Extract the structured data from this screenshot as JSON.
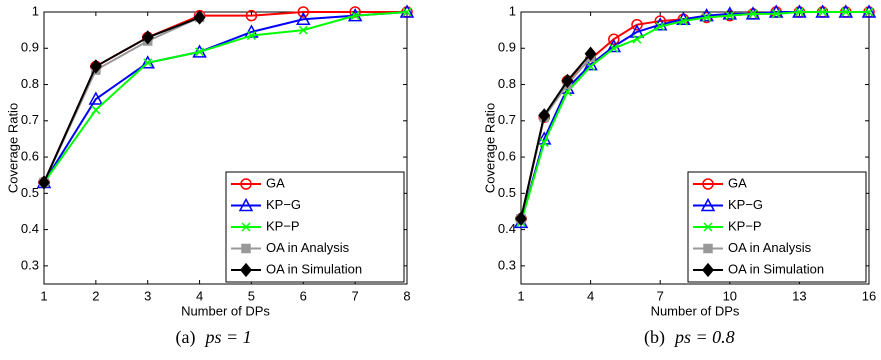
{
  "chart_data": [
    {
      "type": "line",
      "caption_label": "(a)",
      "caption": "ps = 1",
      "xlabel": "Number of DPs",
      "ylabel": "Coverage Ratio",
      "x": [
        1,
        2,
        3,
        4,
        5,
        6,
        7,
        8
      ],
      "xlim": [
        1,
        8
      ],
      "xticks": [
        1,
        2,
        3,
        4,
        5,
        6,
        7,
        8
      ],
      "ylim": [
        0.25,
        1
      ],
      "yticks": [
        0.3,
        0.4,
        0.5,
        0.6,
        0.7,
        0.8,
        0.9,
        1
      ],
      "legend": "lower-right",
      "series": [
        {
          "name": "GA",
          "color": "#ff0000",
          "marker": "circle",
          "values": [
            0.53,
            0.85,
            0.93,
            0.99,
            0.99,
            1,
            1,
            1
          ]
        },
        {
          "name": "KP−G",
          "color": "#0000ff",
          "marker": "triangle",
          "values": [
            0.53,
            0.76,
            0.86,
            0.89,
            0.945,
            0.98,
            0.99,
            1
          ]
        },
        {
          "name": "KP−P",
          "color": "#00ff00",
          "marker": "x",
          "values": [
            0.53,
            0.73,
            0.86,
            0.89,
            0.935,
            0.95,
            0.99,
            1
          ]
        },
        {
          "name": "OA in Analysis",
          "color": "#999999",
          "marker": "square",
          "values": [
            0.53,
            0.84,
            0.92,
            0.985,
            null,
            null,
            null,
            null
          ]
        },
        {
          "name": "OA in Simulation",
          "color": "#000000",
          "marker": "diamond",
          "values": [
            0.53,
            0.85,
            0.93,
            0.985,
            null,
            null,
            null,
            null
          ]
        }
      ]
    },
    {
      "type": "line",
      "caption_label": "(b)",
      "caption": "ps = 0.8",
      "xlabel": "Number of DPs",
      "ylabel": "Coverage Ratio",
      "x": [
        1,
        2,
        3,
        4,
        5,
        6,
        7,
        8,
        9,
        10,
        11,
        12,
        13,
        14,
        15,
        16
      ],
      "xlim": [
        1,
        16
      ],
      "xticks": [
        1,
        4,
        7,
        10,
        13,
        16
      ],
      "ylim": [
        0.25,
        1
      ],
      "yticks": [
        0.3,
        0.4,
        0.5,
        0.6,
        0.7,
        0.8,
        0.9,
        1
      ],
      "legend": "lower-right",
      "series": [
        {
          "name": "GA",
          "color": "#ff0000",
          "marker": "circle",
          "values": [
            0.43,
            0.71,
            0.81,
            0.87,
            0.925,
            0.965,
            0.975,
            0.98,
            0.985,
            0.99,
            0.995,
            1,
            1,
            1,
            1,
            1
          ]
        },
        {
          "name": "KP−G",
          "color": "#0000ff",
          "marker": "triangle",
          "values": [
            0.42,
            0.65,
            0.79,
            0.855,
            0.905,
            0.945,
            0.965,
            0.98,
            0.99,
            0.995,
            0.995,
            1,
            1,
            1,
            1,
            1
          ]
        },
        {
          "name": "KP−P",
          "color": "#00ff00",
          "marker": "x",
          "values": [
            0.42,
            0.64,
            0.78,
            0.85,
            0.9,
            0.925,
            0.96,
            0.975,
            0.985,
            0.99,
            0.995,
            0.995,
            1,
            1,
            1,
            1
          ]
        },
        {
          "name": "OA in Analysis",
          "color": "#999999",
          "marker": "square",
          "values": [
            0.43,
            0.71,
            0.8,
            0.875,
            null,
            null,
            null,
            null,
            null,
            null,
            null,
            null,
            null,
            null,
            null,
            null
          ]
        },
        {
          "name": "OA in Simulation",
          "color": "#000000",
          "marker": "diamond",
          "values": [
            0.43,
            0.715,
            0.81,
            0.885,
            null,
            null,
            null,
            null,
            null,
            null,
            null,
            null,
            null,
            null,
            null,
            null
          ]
        }
      ]
    }
  ]
}
